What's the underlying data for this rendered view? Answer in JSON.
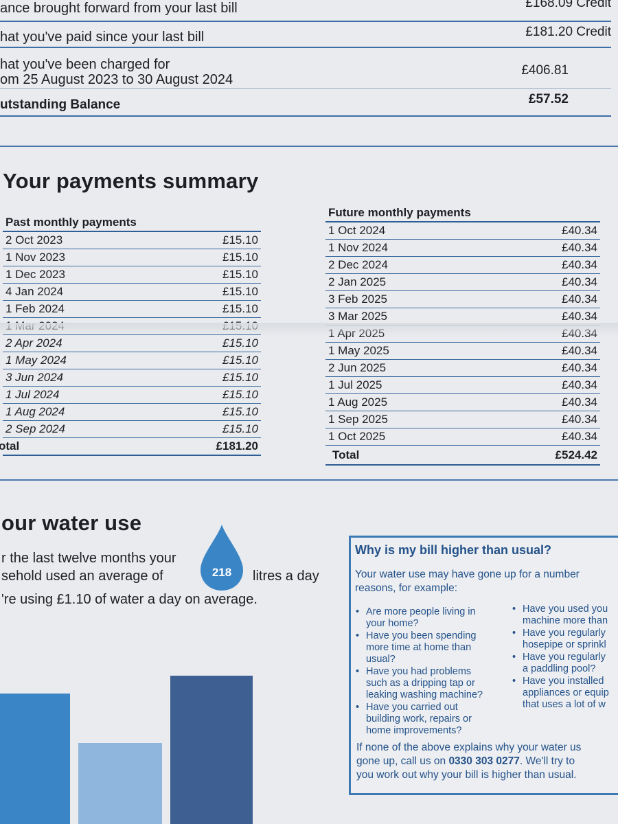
{
  "balance": {
    "rows": [
      {
        "label": "ance brought forward from your last bill",
        "amount": "£168.09 Credit"
      },
      {
        "label": "hat you've paid since your last bill",
        "amount": "£181.20 Credit"
      },
      {
        "label": "hat you've been charged for",
        "label2": "om 25 August 2023 to 30 August 2024",
        "amount": "£406.81"
      },
      {
        "label": "utstanding Balance",
        "amount": "£57.52"
      }
    ]
  },
  "payments": {
    "title": "Your payments summary",
    "past": {
      "heading": "Past monthly payments",
      "rows": [
        {
          "date": "2 Oct 2023",
          "amount": "£15.10"
        },
        {
          "date": "1 Nov 2023",
          "amount": "£15.10"
        },
        {
          "date": "1 Dec 2023",
          "amount": "£15.10"
        },
        {
          "date": "4 Jan 2024",
          "amount": "£15.10"
        },
        {
          "date": "1 Feb 2024",
          "amount": "£15.10"
        },
        {
          "date": "1 Mar 2024",
          "amount": "£15.10"
        },
        {
          "date": "2 Apr 2024",
          "amount": "£15.10"
        },
        {
          "date": "1 May 2024",
          "amount": "£15.10"
        },
        {
          "date": "3 Jun 2024",
          "amount": "£15.10"
        },
        {
          "date": "1 Jul 2024",
          "amount": "£15.10"
        },
        {
          "date": "1 Aug 2024",
          "amount": "£15.10"
        },
        {
          "date": "2 Sep 2024",
          "amount": "£15.10"
        }
      ],
      "total_label": "otal",
      "total": "£181.20"
    },
    "future": {
      "heading": "Future monthly payments",
      "rows": [
        {
          "date": "1 Oct 2024",
          "amount": "£40.34"
        },
        {
          "date": "1 Nov 2024",
          "amount": "£40.34"
        },
        {
          "date": "2 Dec 2024",
          "amount": "£40.34"
        },
        {
          "date": "2 Jan 2025",
          "amount": "£40.34"
        },
        {
          "date": "3 Feb 2025",
          "amount": "£40.34"
        },
        {
          "date": "3 Mar 2025",
          "amount": "£40.34"
        },
        {
          "date": "1 Apr 2025",
          "amount": "£40.34"
        },
        {
          "date": "1 May 2025",
          "amount": "£40.34"
        },
        {
          "date": "2 Jun 2025",
          "amount": "£40.34"
        },
        {
          "date": "1 Jul 2025",
          "amount": "£40.34"
        },
        {
          "date": "1 Aug 2025",
          "amount": "£40.34"
        },
        {
          "date": "1 Sep 2025",
          "amount": "£40.34"
        },
        {
          "date": "1 Oct 2025",
          "amount": "£40.34"
        }
      ],
      "total_label": "Total",
      "total": "£524.42"
    }
  },
  "water": {
    "title": "our water use",
    "line1": "r the last twelve months your",
    "line2a": "sehold used an average of",
    "litres": "218",
    "line2b": "litres a day",
    "line3": "'re using £1.10 of water a day on average.",
    "bars": [
      {
        "color": "#3a85c6"
      },
      {
        "color": "#8fb6dc"
      },
      {
        "color": "#3d5f92"
      }
    ]
  },
  "info": {
    "title": "Why is my bill higher than usual?",
    "intro1": "Your water use may have gone up for a number",
    "intro2": "reasons, for example:",
    "left_bullets": [
      {
        "l1": "Are more people living in",
        "l2": "your home?"
      },
      {
        "l1": "Have you been spending",
        "l2": "more time at home than",
        "l3": "usual?"
      },
      {
        "l1": "Have you had problems",
        "l2": "such as a dripping tap or",
        "l3": "leaking washing machine?"
      },
      {
        "l1": "Have you carried out",
        "l2": "building work, repairs or",
        "l3": "home improvements?"
      }
    ],
    "right_bullets": [
      {
        "l1": "Have you used you",
        "l2": "machine more than"
      },
      {
        "l1": "Have you regularly",
        "l2": "hosepipe or sprinkl"
      },
      {
        "l1": "Have you regularly",
        "l2": "a paddling pool?"
      },
      {
        "l1": "Have you installed",
        "l2": "appliances or equip",
        "l3": "that uses a lot of w"
      }
    ],
    "footer1": "If none of the above explains why your water us",
    "footer2a": "gone up, call us on ",
    "phone": "0330 303 0277",
    "footer2b": ". We'll try to",
    "footer3": "you work out why your bill is higher than usual."
  },
  "colors": {
    "accent": "#3c79b5",
    "rule": "#2f5e94"
  }
}
